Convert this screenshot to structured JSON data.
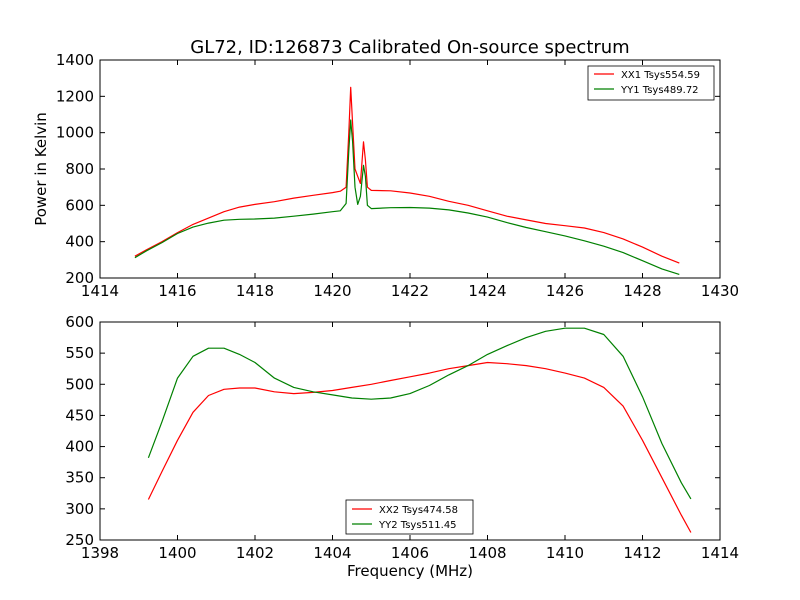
{
  "chart_data": [
    {
      "type": "line",
      "title": "GL72, ID:126873 Calibrated On-source spectrum",
      "xlabel": "",
      "ylabel": "Power in Kelvin",
      "xlim": [
        1414,
        1430
      ],
      "ylim": [
        200,
        1400
      ],
      "xticks": [
        1414,
        1416,
        1418,
        1420,
        1422,
        1424,
        1426,
        1428,
        1430
      ],
      "yticks": [
        200,
        400,
        600,
        800,
        1000,
        1200,
        1400
      ],
      "legend_position": "top-right",
      "series": [
        {
          "name": "XX1 Tsys554.59",
          "color": "#ff0000",
          "x": [
            1414.9,
            1415.2,
            1415.6,
            1416.0,
            1416.4,
            1416.8,
            1417.2,
            1417.6,
            1418.0,
            1418.5,
            1419.0,
            1419.5,
            1420.0,
            1420.2,
            1420.35,
            1420.42,
            1420.47,
            1420.52,
            1420.58,
            1420.65,
            1420.72,
            1420.8,
            1420.85,
            1420.9,
            1421.0,
            1421.5,
            1422.0,
            1422.5,
            1423.0,
            1423.5,
            1424.0,
            1424.5,
            1425.0,
            1425.5,
            1426.0,
            1426.5,
            1427.0,
            1427.5,
            1428.0,
            1428.5,
            1428.95
          ],
          "y": [
            320,
            355,
            400,
            450,
            495,
            530,
            565,
            590,
            605,
            620,
            640,
            655,
            670,
            678,
            700,
            1000,
            1250,
            1050,
            800,
            760,
            720,
            950,
            850,
            700,
            682,
            680,
            668,
            650,
            622,
            600,
            570,
            540,
            520,
            500,
            488,
            475,
            450,
            415,
            370,
            320,
            282
          ]
        },
        {
          "name": "YY1 Tsys489.72",
          "color": "#008000",
          "x": [
            1414.9,
            1415.2,
            1415.6,
            1416.0,
            1416.4,
            1416.8,
            1417.2,
            1417.6,
            1418.0,
            1418.5,
            1419.0,
            1419.5,
            1420.0,
            1420.2,
            1420.35,
            1420.42,
            1420.47,
            1420.52,
            1420.58,
            1420.65,
            1420.72,
            1420.8,
            1420.85,
            1420.9,
            1421.0,
            1421.5,
            1422.0,
            1422.5,
            1423.0,
            1423.5,
            1424.0,
            1424.5,
            1425.0,
            1425.5,
            1426.0,
            1426.5,
            1427.0,
            1427.5,
            1428.0,
            1428.5,
            1428.95
          ],
          "y": [
            312,
            350,
            395,
            445,
            480,
            502,
            518,
            523,
            525,
            530,
            540,
            552,
            565,
            570,
            610,
            900,
            1070,
            950,
            700,
            605,
            650,
            820,
            760,
            600,
            582,
            587,
            588,
            585,
            575,
            558,
            535,
            505,
            478,
            455,
            432,
            405,
            375,
            340,
            295,
            250,
            220
          ]
        }
      ]
    },
    {
      "type": "line",
      "title": "",
      "xlabel": "Frequency (MHz)",
      "ylabel": "",
      "xlim": [
        1398,
        1414
      ],
      "ylim": [
        250,
        600
      ],
      "xticks": [
        1398,
        1400,
        1402,
        1404,
        1406,
        1408,
        1410,
        1412,
        1414
      ],
      "yticks": [
        250,
        300,
        350,
        400,
        450,
        500,
        550,
        600
      ],
      "legend_position": "bottom-center",
      "series": [
        {
          "name": "XX2 Tsys474.58",
          "color": "#ff0000",
          "x": [
            1399.25,
            1399.6,
            1400.0,
            1400.4,
            1400.8,
            1401.2,
            1401.6,
            1402.0,
            1402.5,
            1403.0,
            1403.5,
            1404.0,
            1404.5,
            1405.0,
            1405.5,
            1406.0,
            1406.5,
            1407.0,
            1407.5,
            1408.0,
            1408.5,
            1409.0,
            1409.5,
            1410.0,
            1410.5,
            1411.0,
            1411.5,
            1412.0,
            1412.5,
            1413.0,
            1413.25
          ],
          "y": [
            315,
            360,
            410,
            455,
            482,
            492,
            494,
            494,
            488,
            485,
            487,
            490,
            495,
            500,
            506,
            512,
            518,
            525,
            530,
            535,
            533,
            530,
            525,
            518,
            510,
            495,
            465,
            410,
            350,
            290,
            262
          ]
        },
        {
          "name": "YY2 Tsys511.45",
          "color": "#008000",
          "x": [
            1399.25,
            1399.6,
            1400.0,
            1400.4,
            1400.8,
            1401.2,
            1401.6,
            1402.0,
            1402.5,
            1403.0,
            1403.5,
            1404.0,
            1404.5,
            1405.0,
            1405.5,
            1406.0,
            1406.5,
            1407.0,
            1407.5,
            1408.0,
            1408.5,
            1409.0,
            1409.5,
            1410.0,
            1410.5,
            1411.0,
            1411.5,
            1412.0,
            1412.5,
            1413.0,
            1413.25
          ],
          "y": [
            382,
            440,
            510,
            545,
            558,
            558,
            548,
            535,
            510,
            495,
            488,
            483,
            478,
            476,
            478,
            485,
            498,
            515,
            530,
            548,
            562,
            575,
            585,
            590,
            590,
            580,
            545,
            480,
            405,
            342,
            316
          ]
        }
      ]
    }
  ]
}
